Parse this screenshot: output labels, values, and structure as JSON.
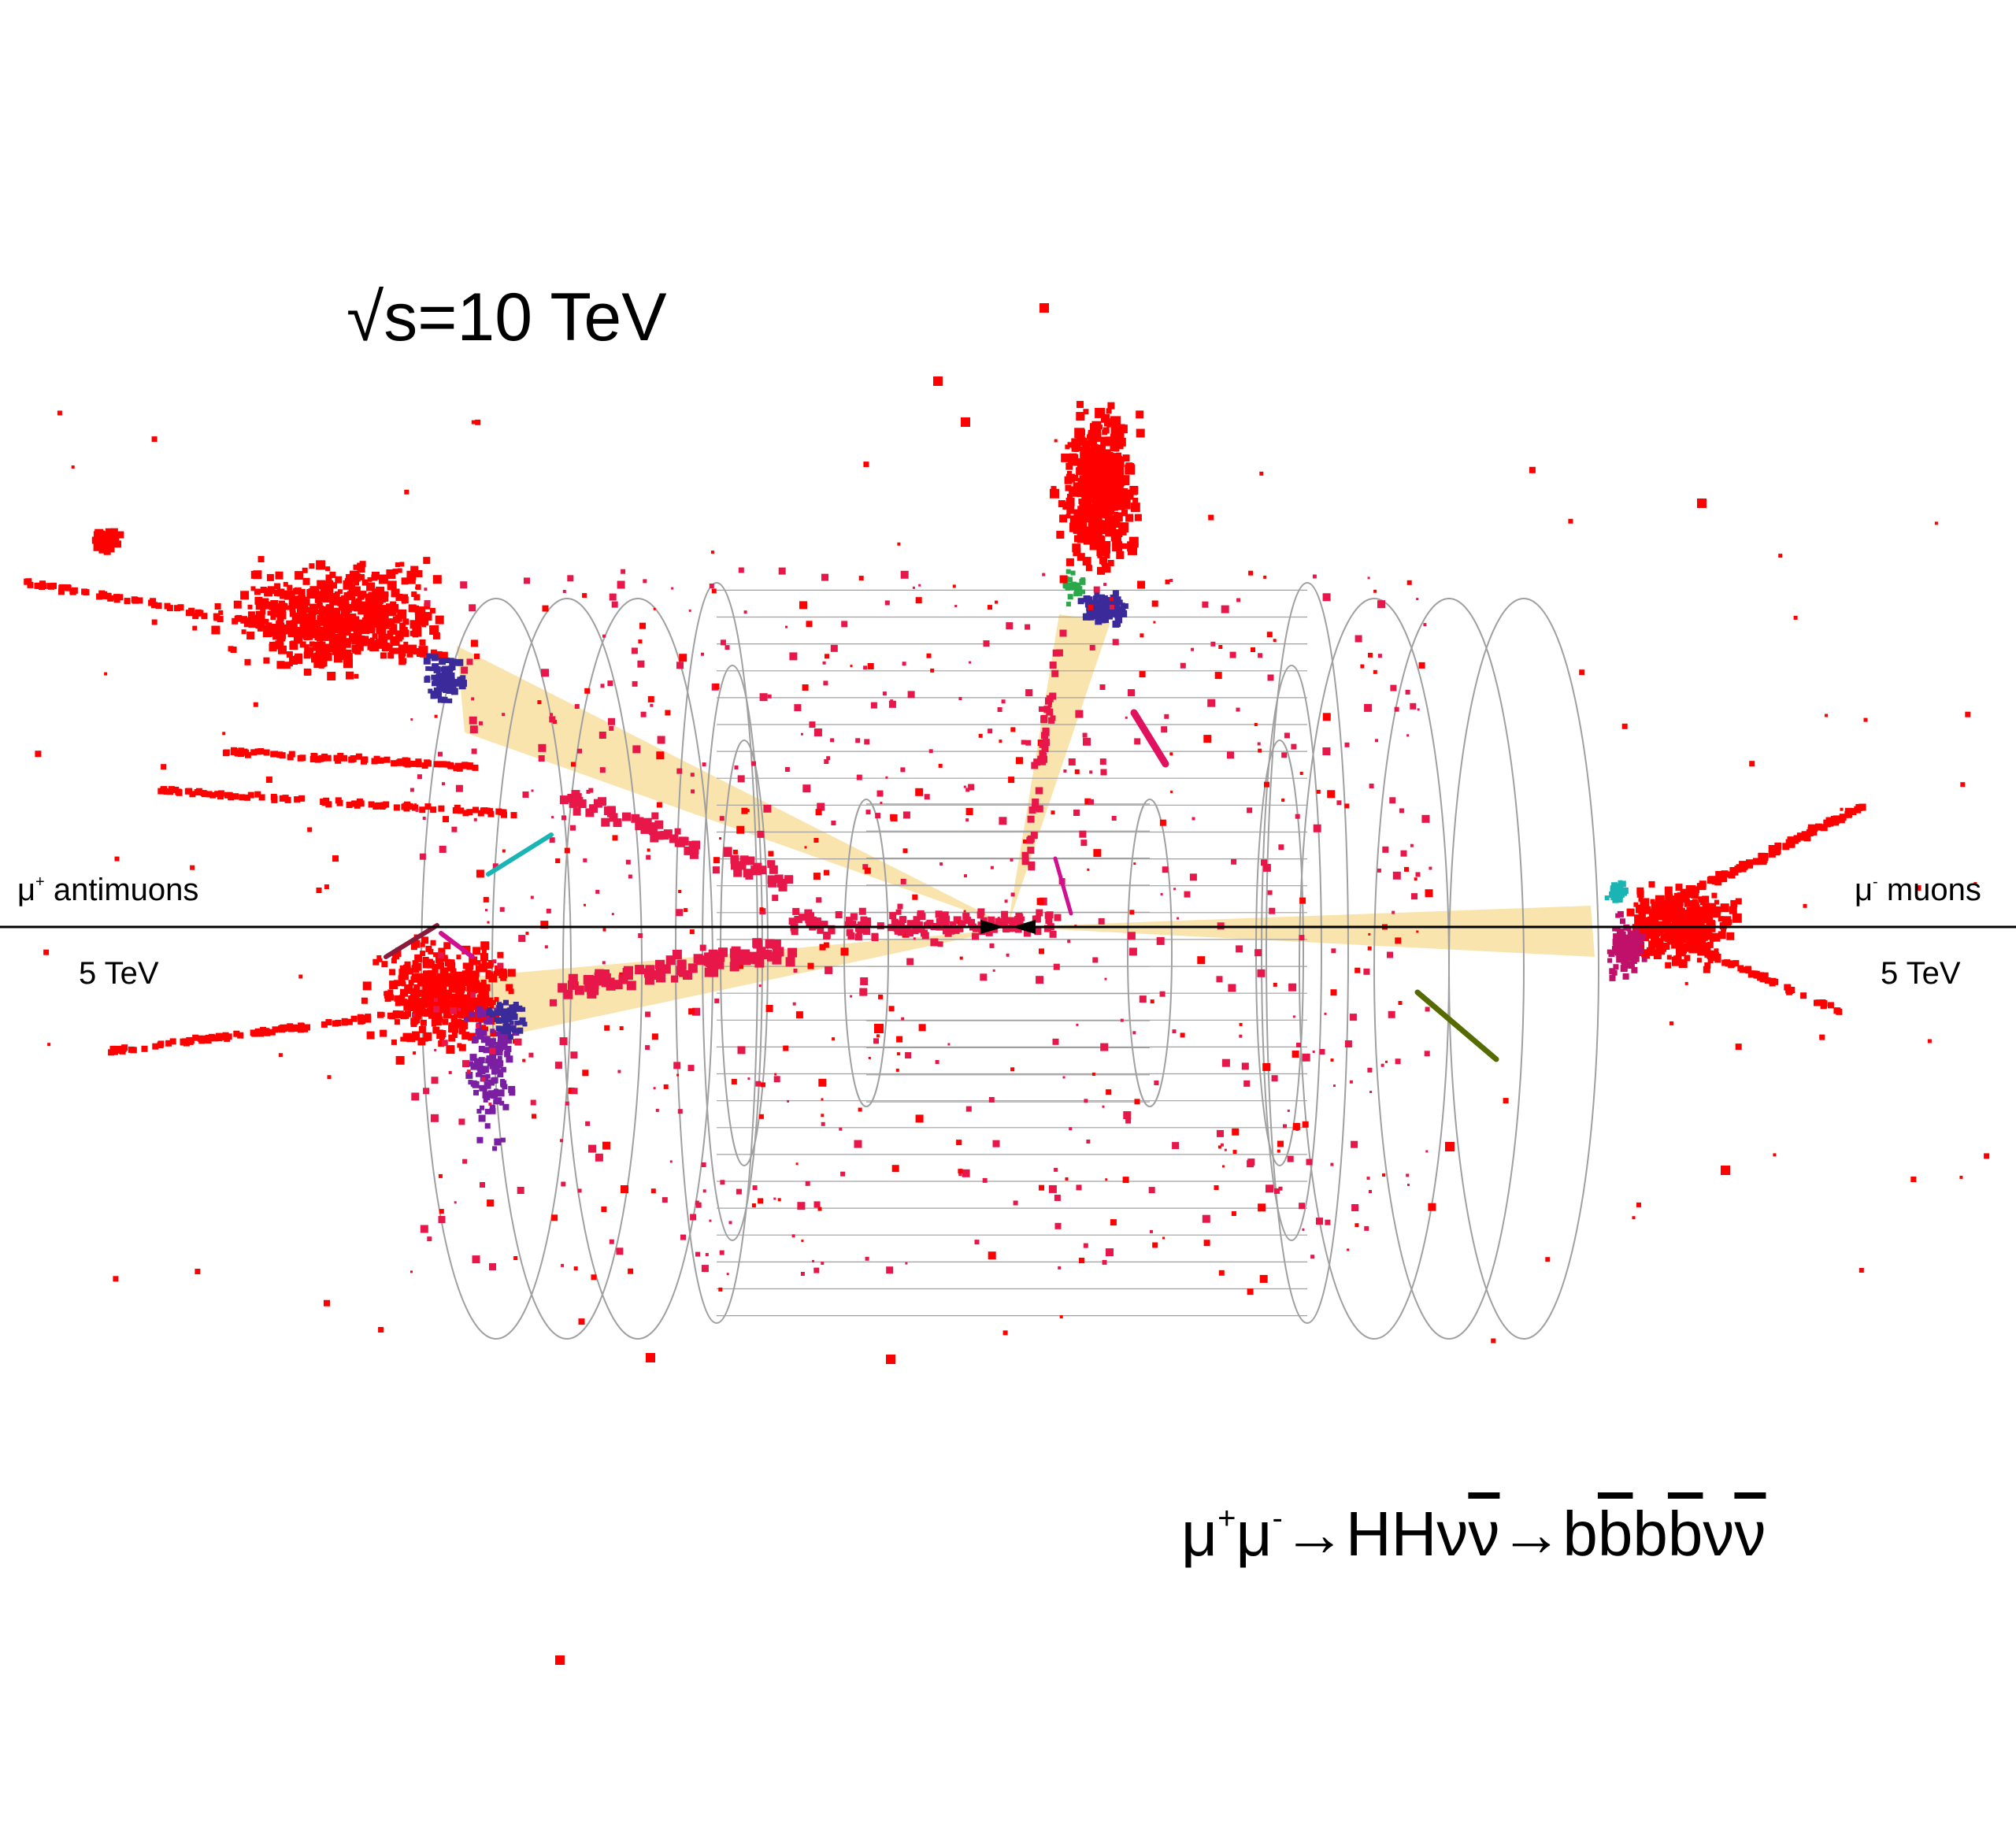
{
  "title": {
    "sqrt": "√",
    "expr": "s=10 TeV"
  },
  "left_beam": {
    "mu": "μ",
    "charge": "+",
    "label": " antimuons",
    "energy": "5 TeV"
  },
  "right_beam": {
    "mu": "μ",
    "charge": "-",
    "label": " muons",
    "energy": "5 TeV"
  },
  "process": {
    "p1": "μ",
    "s1": "+",
    "p2": "μ",
    "s2": "-",
    "arrow1": "→",
    "hh": "HHν",
    "nubar": "ν",
    "arrow2": "→",
    "b1": "b",
    "b2": "b",
    "b3": "b",
    "b4": "b",
    "nu2": "ν",
    "nu3": "ν"
  },
  "colors": {
    "hits_primary": "#ff0000",
    "hits_secondary": "#e8174a",
    "detector_wire": "#a0a0a0",
    "jet_cone": "#f5cd6a",
    "beam_axis": "#000000"
  }
}
